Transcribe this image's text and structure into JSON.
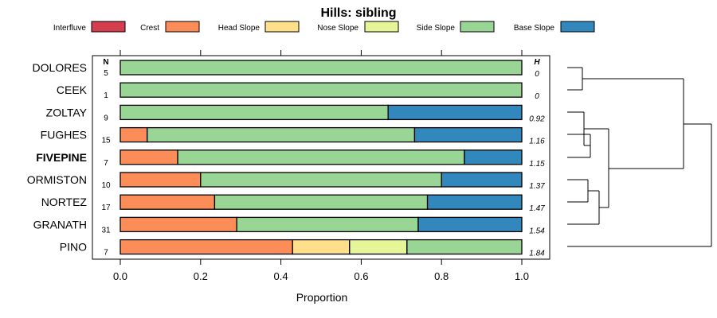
{
  "chart_data": {
    "type": "bar",
    "orientation": "horizontal",
    "stacked": true,
    "title": "Hills: sibling",
    "xlabel": "Proportion",
    "ylabel": "",
    "xlim": [
      0,
      1
    ],
    "x_ticks": [
      "0.0",
      "0.2",
      "0.4",
      "0.6",
      "0.8",
      "1.0"
    ],
    "n_header": "N",
    "h_header": "H",
    "legend_position": "top",
    "legend": [
      {
        "name": "Interfluve",
        "color": "#d53e4f"
      },
      {
        "name": "Crest",
        "color": "#fc8d59"
      },
      {
        "name": "Head Slope",
        "color": "#fee08b"
      },
      {
        "name": "Nose Slope",
        "color": "#e6f598"
      },
      {
        "name": "Side Slope",
        "color": "#99d594"
      },
      {
        "name": "Base Slope",
        "color": "#3288bd"
      }
    ],
    "rows": [
      {
        "label": "DOLORES",
        "bold": false,
        "n": "5",
        "h": "0",
        "values": [
          0,
          0,
          0,
          0,
          1.0,
          0
        ]
      },
      {
        "label": "CEEK",
        "bold": false,
        "n": "1",
        "h": "0",
        "values": [
          0,
          0,
          0,
          0,
          1.0,
          0
        ]
      },
      {
        "label": "ZOLTAY",
        "bold": false,
        "n": "9",
        "h": "0.92",
        "values": [
          0,
          0,
          0,
          0,
          0.667,
          0.333
        ]
      },
      {
        "label": "FUGHES",
        "bold": false,
        "n": "15",
        "h": "1.16",
        "values": [
          0,
          0.067,
          0,
          0,
          0.666,
          0.267
        ]
      },
      {
        "label": "FIVEPINE",
        "bold": true,
        "n": "7",
        "h": "1.15",
        "values": [
          0,
          0.143,
          0,
          0,
          0.714,
          0.143
        ]
      },
      {
        "label": "ORMISTON",
        "bold": false,
        "n": "10",
        "h": "1.37",
        "values": [
          0,
          0.2,
          0,
          0,
          0.6,
          0.2
        ]
      },
      {
        "label": "NORTEZ",
        "bold": false,
        "n": "17",
        "h": "1.47",
        "values": [
          0,
          0.235,
          0,
          0,
          0.53,
          0.235
        ]
      },
      {
        "label": "GRANATH",
        "bold": false,
        "n": "31",
        "h": "1.54",
        "values": [
          0,
          0.29,
          0,
          0,
          0.452,
          0.258
        ]
      },
      {
        "label": "PINO",
        "bold": false,
        "n": "7",
        "h": "1.84",
        "values": [
          0,
          0.429,
          0.142,
          0.143,
          0.286,
          0
        ]
      }
    ]
  }
}
